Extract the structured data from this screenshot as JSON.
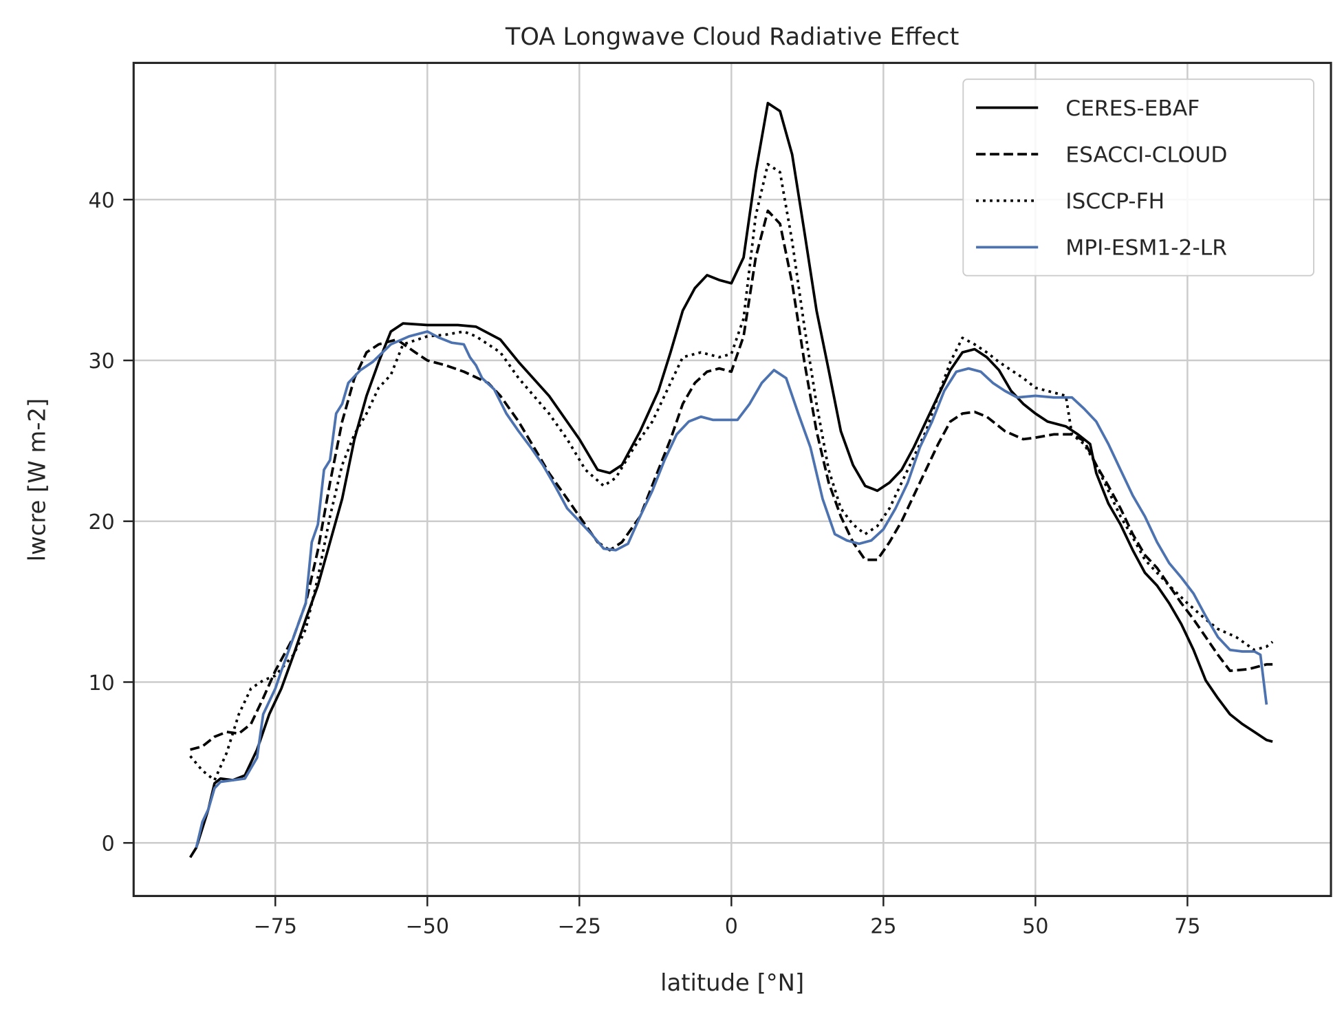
{
  "chart_data": {
    "type": "line",
    "title": "TOA Longwave Cloud Radiative Effect",
    "xlabel": "latitude [°N]",
    "ylabel": "lwcre [W m-2]",
    "xlim": [
      -98.3,
      98.6
    ],
    "ylim": [
      -3.3,
      48.5
    ],
    "xticks": [
      -75,
      -50,
      -25,
      0,
      25,
      50,
      75
    ],
    "xtick_labels": [
      "−75",
      "−50",
      "−25",
      "0",
      "25",
      "50",
      "75"
    ],
    "yticks": [
      0,
      10,
      20,
      30,
      40
    ],
    "ytick_labels": [
      "0",
      "10",
      "20",
      "30",
      "40"
    ],
    "grid": true,
    "legend_position": "top-right",
    "series": [
      {
        "name": "CERES-EBAF",
        "color": "#000000",
        "style": "solid",
        "x": [
          -89,
          -88,
          -86,
          -85,
          -84,
          -82,
          -80,
          -78,
          -76,
          -74,
          -72,
          -70,
          -68,
          -66,
          -64,
          -62,
          -60,
          -58,
          -56,
          -54,
          -50,
          -45,
          -42,
          -38,
          -35,
          -30,
          -25,
          -22,
          -20,
          -18,
          -15,
          -12,
          -10,
          -8,
          -6,
          -4,
          -2,
          0,
          2,
          4,
          6,
          8,
          10,
          12,
          14,
          16,
          18,
          20,
          22,
          24,
          26,
          28,
          30,
          32,
          34,
          36,
          38,
          40,
          42,
          44,
          46,
          48,
          50,
          52,
          55,
          57,
          59,
          60,
          62,
          64,
          66,
          68,
          70,
          72,
          74,
          76,
          78,
          80,
          82,
          84,
          86,
          88,
          89
        ],
        "y": [
          -0.9,
          -0.3,
          2.1,
          3.7,
          4.0,
          3.9,
          4.2,
          5.8,
          8.0,
          9.6,
          11.7,
          13.9,
          16.0,
          18.7,
          21.4,
          25.1,
          27.8,
          29.9,
          31.8,
          32.3,
          32.2,
          32.2,
          32.1,
          31.3,
          29.9,
          27.8,
          25.1,
          23.2,
          23.0,
          23.5,
          25.6,
          28.1,
          30.5,
          33.1,
          34.5,
          35.3,
          35.0,
          34.8,
          36.4,
          41.7,
          46.0,
          45.5,
          42.8,
          38.0,
          33.1,
          29.4,
          25.6,
          23.5,
          22.2,
          21.9,
          22.4,
          23.2,
          24.6,
          26.2,
          27.8,
          29.4,
          30.5,
          30.7,
          30.2,
          29.4,
          28.1,
          27.3,
          26.7,
          26.2,
          25.9,
          25.4,
          24.8,
          23.0,
          21.1,
          19.8,
          18.2,
          16.8,
          16.0,
          14.9,
          13.6,
          12.0,
          10.1,
          9.0,
          8.0,
          7.4,
          6.9,
          6.4,
          6.3
        ]
      },
      {
        "name": "ESACCI-CLOUD",
        "color": "#000000",
        "style": "dashed",
        "x": [
          -89,
          -87,
          -85,
          -83,
          -81,
          -79,
          -77,
          -75,
          -72,
          -70,
          -68,
          -66,
          -64,
          -62,
          -60,
          -58,
          -55,
          -52,
          -50,
          -47,
          -44,
          -40,
          -38,
          -35,
          -32,
          -30,
          -27,
          -25,
          -22,
          -20,
          -18,
          -15,
          -12,
          -10,
          -8,
          -6,
          -4,
          -2,
          0,
          2,
          4,
          6,
          8,
          10,
          12,
          14,
          16,
          18,
          20,
          22,
          24,
          26,
          28,
          30,
          32,
          34,
          36,
          38,
          40,
          42,
          45,
          48,
          50,
          53,
          56,
          58,
          60,
          62,
          64,
          66,
          68,
          70,
          72,
          74,
          76,
          78,
          80,
          82,
          85,
          88,
          89
        ],
        "y": [
          5.8,
          6.0,
          6.6,
          6.9,
          6.8,
          7.4,
          9.0,
          10.7,
          12.8,
          14.9,
          18.2,
          22.4,
          26.2,
          28.9,
          30.5,
          31.0,
          31.3,
          30.5,
          30.0,
          29.7,
          29.3,
          28.6,
          27.8,
          26.2,
          24.3,
          23.0,
          21.4,
          20.3,
          18.7,
          18.2,
          18.7,
          20.3,
          23.2,
          25.1,
          27.3,
          28.6,
          29.3,
          29.5,
          29.3,
          31.5,
          36.4,
          39.3,
          38.5,
          34.8,
          29.9,
          25.6,
          22.4,
          20.3,
          18.7,
          17.6,
          17.6,
          18.7,
          20.0,
          21.6,
          23.2,
          24.8,
          26.2,
          26.7,
          26.8,
          26.5,
          25.6,
          25.1,
          25.2,
          25.4,
          25.4,
          25.0,
          23.5,
          22.2,
          20.8,
          19.2,
          17.9,
          17.1,
          16.0,
          14.9,
          13.9,
          12.8,
          11.7,
          10.7,
          10.8,
          11.1,
          11.1
        ]
      },
      {
        "name": "ISCCP-FH",
        "color": "#000000",
        "style": "dotted",
        "x": [
          -89,
          -87,
          -85,
          -83,
          -81,
          -79,
          -77,
          -75,
          -72,
          -70,
          -68,
          -66,
          -64,
          -62,
          -60,
          -58,
          -56,
          -54,
          -50,
          -47,
          -44,
          -42,
          -38,
          -35,
          -30,
          -27,
          -24,
          -21,
          -19,
          -16,
          -13,
          -10,
          -8,
          -5,
          -2,
          0,
          2,
          4,
          6,
          8,
          10,
          12,
          14,
          16,
          18,
          20,
          22,
          24,
          26,
          28,
          30,
          32,
          34,
          36,
          38,
          40,
          42,
          44,
          46,
          48,
          50,
          52,
          55,
          56,
          58,
          60,
          62,
          64,
          66,
          68,
          70,
          72,
          75,
          78,
          80,
          83,
          86,
          88,
          89
        ],
        "y": [
          5.4,
          4.5,
          3.9,
          5.6,
          8.0,
          9.6,
          10.1,
          10.4,
          11.7,
          13.3,
          16.5,
          20.3,
          23.5,
          25.4,
          26.7,
          28.3,
          29.1,
          31.0,
          31.5,
          31.6,
          31.8,
          31.5,
          30.5,
          28.9,
          26.7,
          25.1,
          23.2,
          22.2,
          22.7,
          24.6,
          26.2,
          28.6,
          30.2,
          30.5,
          30.2,
          30.4,
          32.6,
          39.0,
          42.2,
          41.7,
          37.4,
          32.1,
          27.3,
          23.2,
          20.8,
          19.8,
          19.2,
          19.7,
          20.8,
          22.4,
          24.0,
          25.6,
          27.8,
          29.9,
          31.4,
          31.0,
          30.5,
          29.9,
          29.4,
          28.9,
          28.3,
          28.1,
          27.8,
          25.4,
          24.8,
          23.5,
          21.9,
          20.3,
          19.0,
          17.6,
          16.8,
          16.0,
          14.9,
          13.9,
          13.3,
          12.8,
          12.0,
          12.2,
          12.5
        ]
      },
      {
        "name": "MPI-ESM1-2-LR",
        "color": "#4c72b0",
        "style": "solid",
        "x": [
          -88,
          -87,
          -86,
          -85,
          -84,
          -82,
          -80,
          -78,
          -77,
          -75,
          -74,
          -72,
          -70,
          -69,
          -68,
          -67,
          -66,
          -65,
          -64,
          -63,
          -61,
          -59,
          -56,
          -53,
          -50,
          -48,
          -46,
          -44,
          -43,
          -42,
          -41,
          -39,
          -37,
          -35,
          -33,
          -31,
          -29,
          -27,
          -25,
          -23,
          -21,
          -19,
          -17,
          -15,
          -13,
          -11,
          -9,
          -7,
          -5,
          -3,
          -1,
          1,
          3,
          5,
          7,
          9,
          11,
          13,
          15,
          17,
          19,
          21,
          23,
          25,
          27,
          29,
          31,
          33,
          35,
          37,
          39,
          41,
          43,
          45,
          47,
          50,
          53,
          56,
          58,
          60,
          62,
          64,
          66,
          68,
          70,
          72,
          74,
          76,
          78,
          80,
          82,
          84,
          86,
          87,
          88
        ],
        "y": [
          -0.3,
          1.3,
          2.1,
          3.4,
          3.8,
          3.9,
          4.0,
          5.3,
          8.0,
          9.6,
          10.7,
          12.8,
          14.9,
          18.7,
          19.8,
          23.2,
          23.8,
          26.7,
          27.3,
          28.6,
          29.4,
          29.9,
          31.0,
          31.5,
          31.8,
          31.4,
          31.1,
          31.0,
          30.2,
          29.7,
          28.9,
          28.2,
          26.7,
          25.6,
          24.6,
          23.5,
          22.2,
          20.8,
          20.0,
          19.2,
          18.3,
          18.2,
          18.6,
          20.3,
          21.9,
          23.8,
          25.4,
          26.2,
          26.5,
          26.3,
          26.3,
          26.3,
          27.3,
          28.6,
          29.4,
          28.9,
          26.7,
          24.6,
          21.4,
          19.2,
          18.8,
          18.6,
          18.8,
          19.5,
          20.8,
          22.4,
          24.6,
          26.2,
          28.1,
          29.3,
          29.5,
          29.3,
          28.6,
          28.1,
          27.7,
          27.8,
          27.7,
          27.7,
          27.0,
          26.2,
          24.8,
          23.2,
          21.6,
          20.3,
          18.7,
          17.4,
          16.5,
          15.5,
          14.1,
          12.8,
          12.0,
          11.9,
          11.9,
          11.7,
          8.6
        ]
      }
    ]
  }
}
